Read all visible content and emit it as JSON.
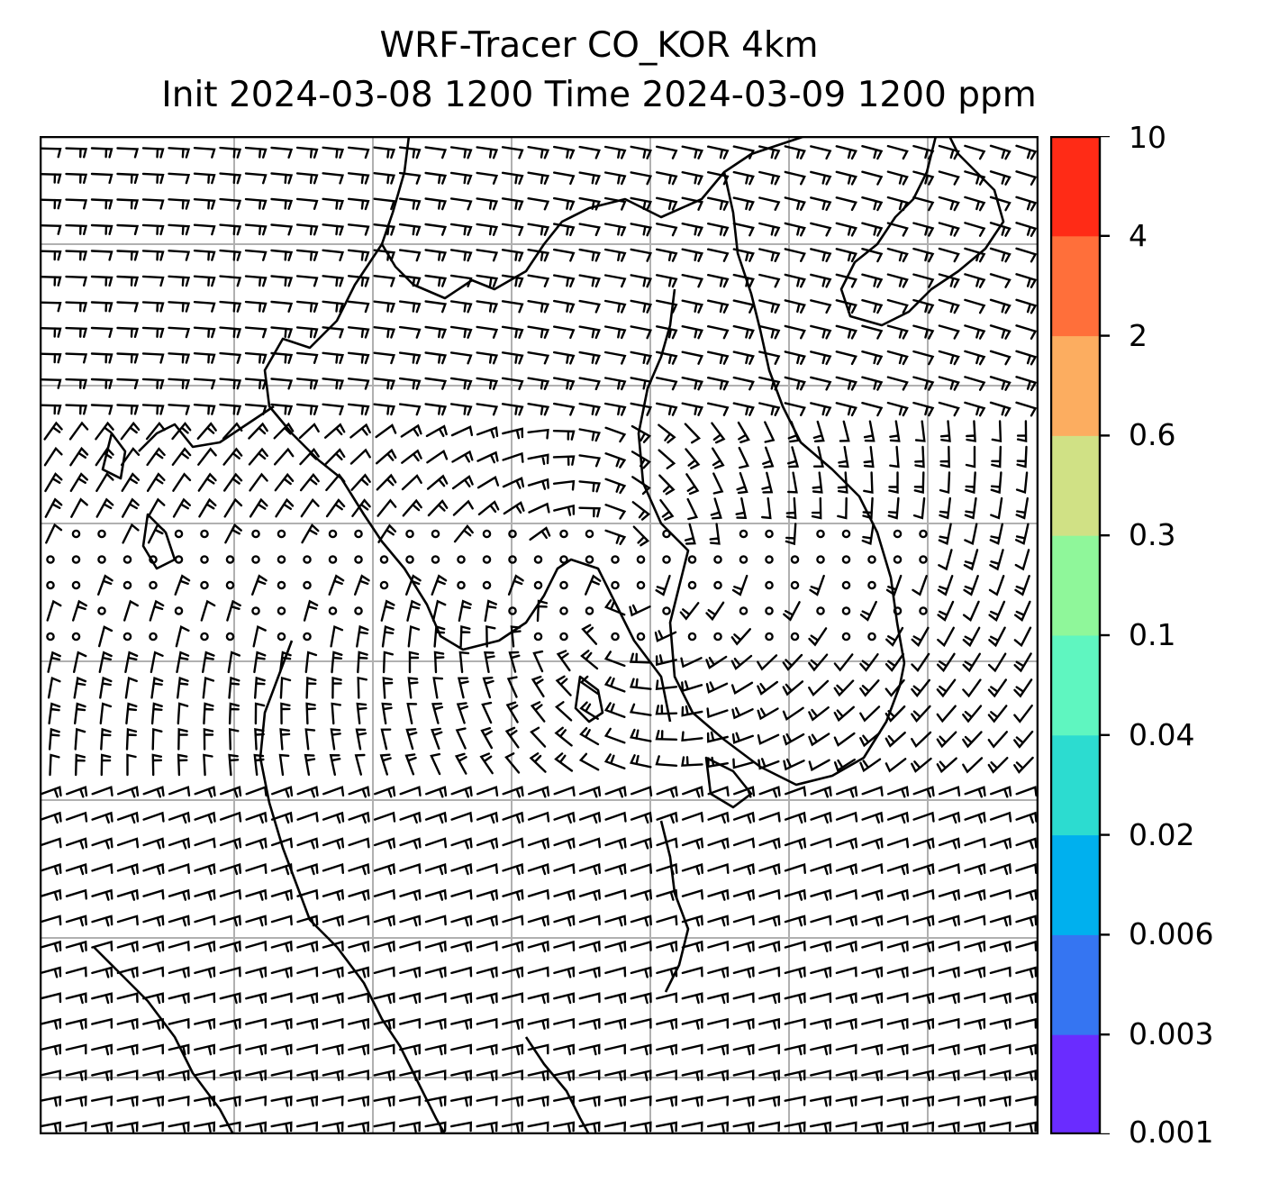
{
  "title_line1": "WRF-Tracer CO_KOR 4km",
  "title_line2": "Init 2024-03-08 1200 Time 2024-03-09 1200 ppm",
  "colorbar": {
    "labels": [
      "0.001",
      "0.003",
      "0.006",
      "0.02",
      "0.04",
      "0.1",
      "0.3",
      "0.6",
      "2",
      "4",
      "10"
    ],
    "colors": [
      "#6a2cff",
      "#3575f2",
      "#00b0ee",
      "#2cdcd0",
      "#5ff6c0",
      "#8ff79a",
      "#d0e185",
      "#fcad60",
      "#ff6f3a",
      "#ff2b16"
    ]
  },
  "map": {
    "gridline_color": "#b0b0b0",
    "coastline_color": "#000000",
    "barb_color": "#000000",
    "low_wind_circle_zone": "central band of the domain (calm winds marked with circles)"
  }
}
